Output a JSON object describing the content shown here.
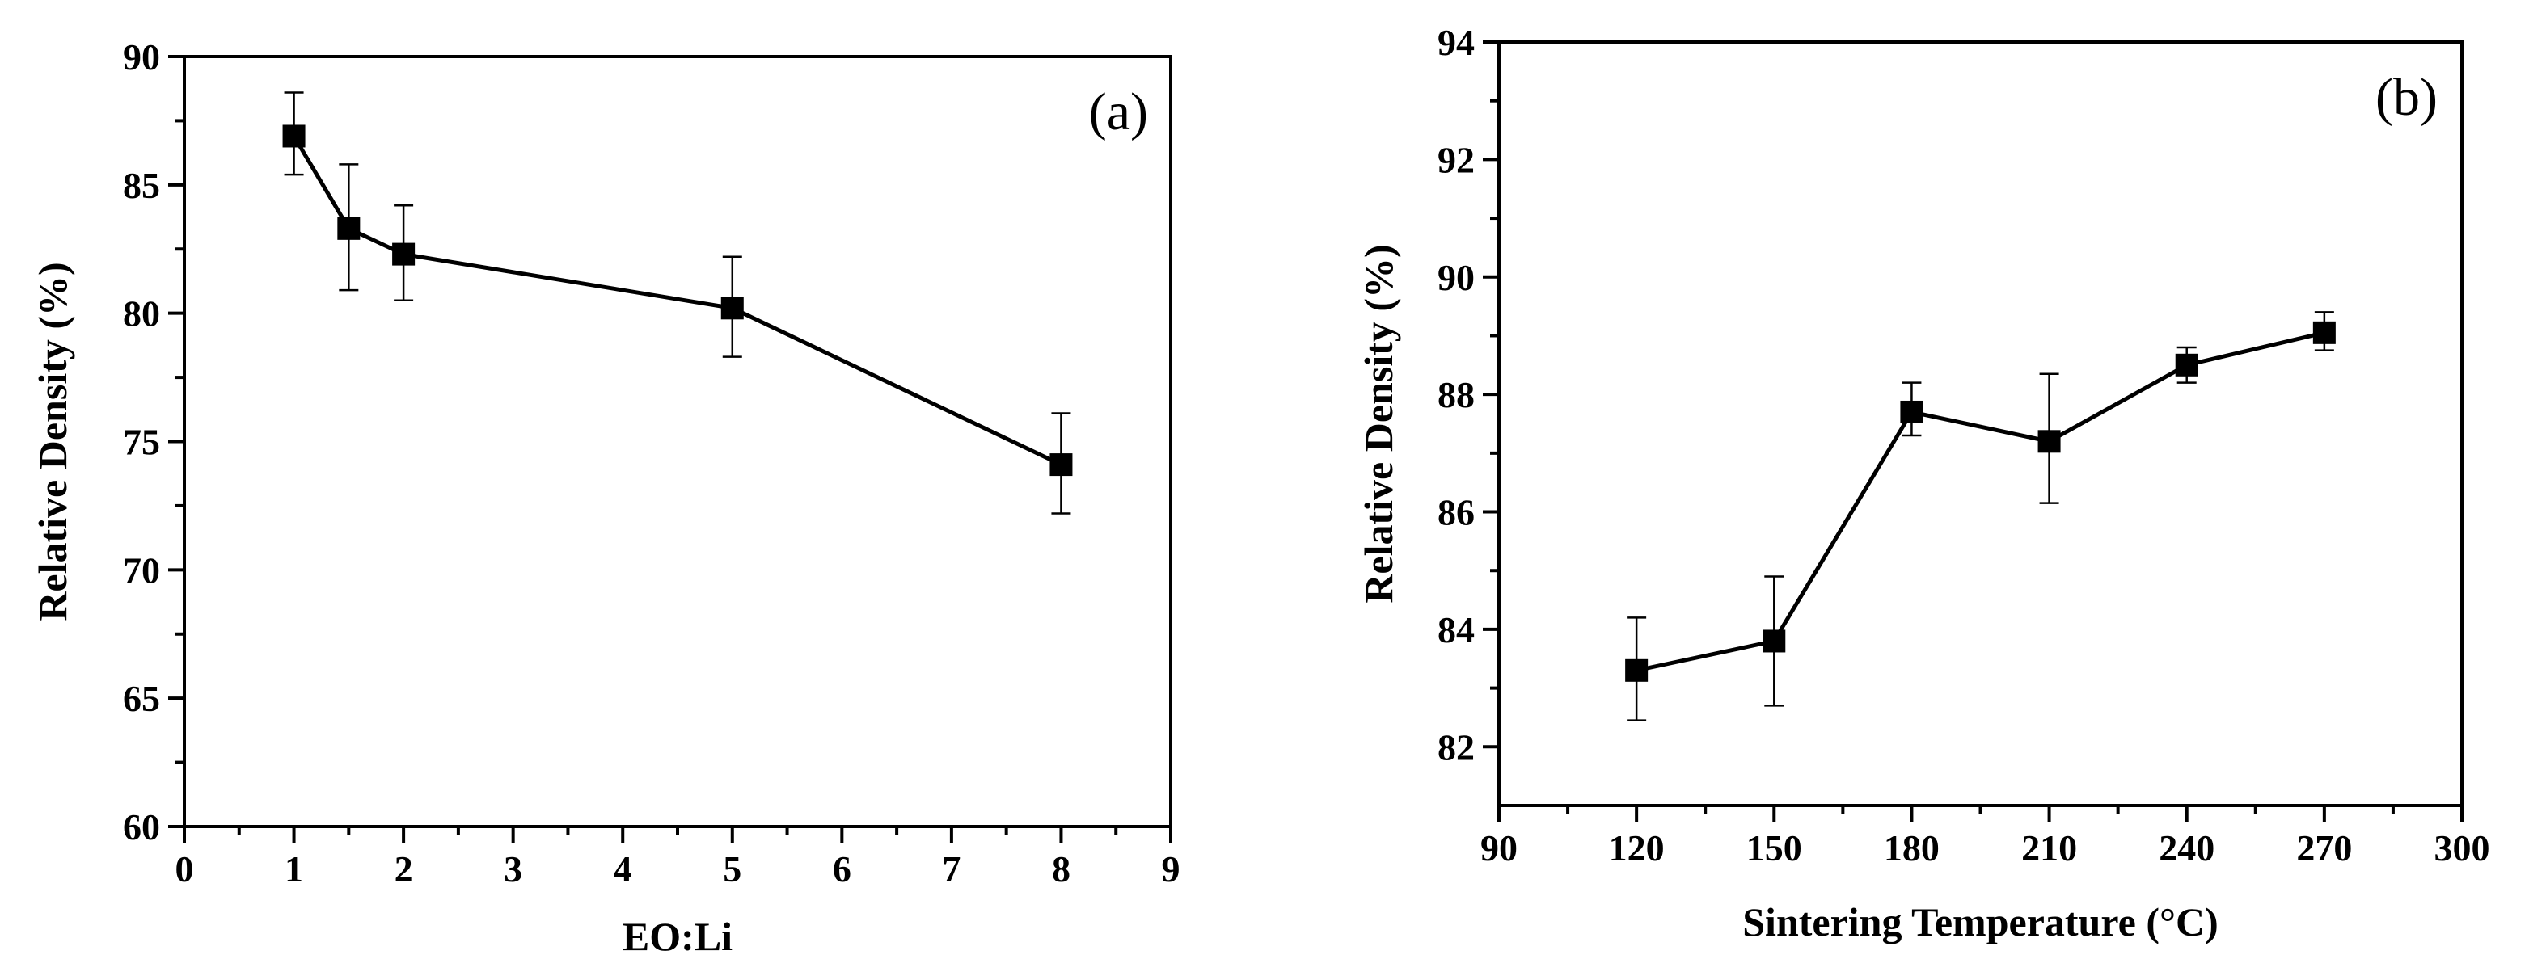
{
  "chart_data": [
    {
      "type": "line",
      "panel_label": "(a)",
      "title": "",
      "xlabel": "EO:Li",
      "ylabel": "Relative Density (%)",
      "xlim": [
        0,
        9
      ],
      "ylim": [
        60,
        90
      ],
      "xticks": [
        0,
        1,
        2,
        3,
        4,
        5,
        6,
        7,
        8,
        9
      ],
      "xtick_labels": [
        "0",
        "1",
        "2",
        "3",
        "4",
        "5",
        "6",
        "7",
        "8",
        "9"
      ],
      "yticks": [
        60,
        65,
        70,
        75,
        80,
        85,
        90
      ],
      "ytick_labels": [
        "60",
        "65",
        "70",
        "75",
        "80",
        "85",
        "90"
      ],
      "marker": "square",
      "series": [
        {
          "name": "Relative Density",
          "x": [
            1,
            1.5,
            2,
            5,
            8
          ],
          "y": [
            86.9,
            83.3,
            82.3,
            80.2,
            74.1
          ],
          "err_low": [
            85.4,
            80.9,
            80.5,
            78.3,
            72.2
          ],
          "err_high": [
            88.6,
            85.8,
            84.2,
            82.2,
            76.1
          ]
        }
      ]
    },
    {
      "type": "line",
      "panel_label": "(b)",
      "title": "",
      "xlabel": "Sintering Temperature (°C)",
      "ylabel": "Relative Density (%)",
      "xlim": [
        90,
        300
      ],
      "ylim": [
        81,
        94
      ],
      "xticks": [
        90,
        120,
        150,
        180,
        210,
        240,
        270,
        300
      ],
      "xtick_labels": [
        "90",
        "120",
        "150",
        "180",
        "210",
        "240",
        "270",
        "300"
      ],
      "yticks": [
        82,
        84,
        86,
        88,
        90,
        92,
        94
      ],
      "ytick_labels": [
        "82",
        "84",
        "86",
        "88",
        "90",
        "92",
        "94"
      ],
      "marker": "square",
      "series": [
        {
          "name": "Relative Density",
          "x": [
            120,
            150,
            180,
            210,
            240,
            270
          ],
          "y": [
            83.3,
            83.8,
            87.7,
            87.2,
            88.5,
            89.05
          ],
          "err_low": [
            82.45,
            82.7,
            87.3,
            86.15,
            88.2,
            88.75
          ],
          "err_high": [
            84.2,
            84.9,
            88.2,
            88.35,
            88.8,
            89.4
          ]
        }
      ]
    }
  ]
}
